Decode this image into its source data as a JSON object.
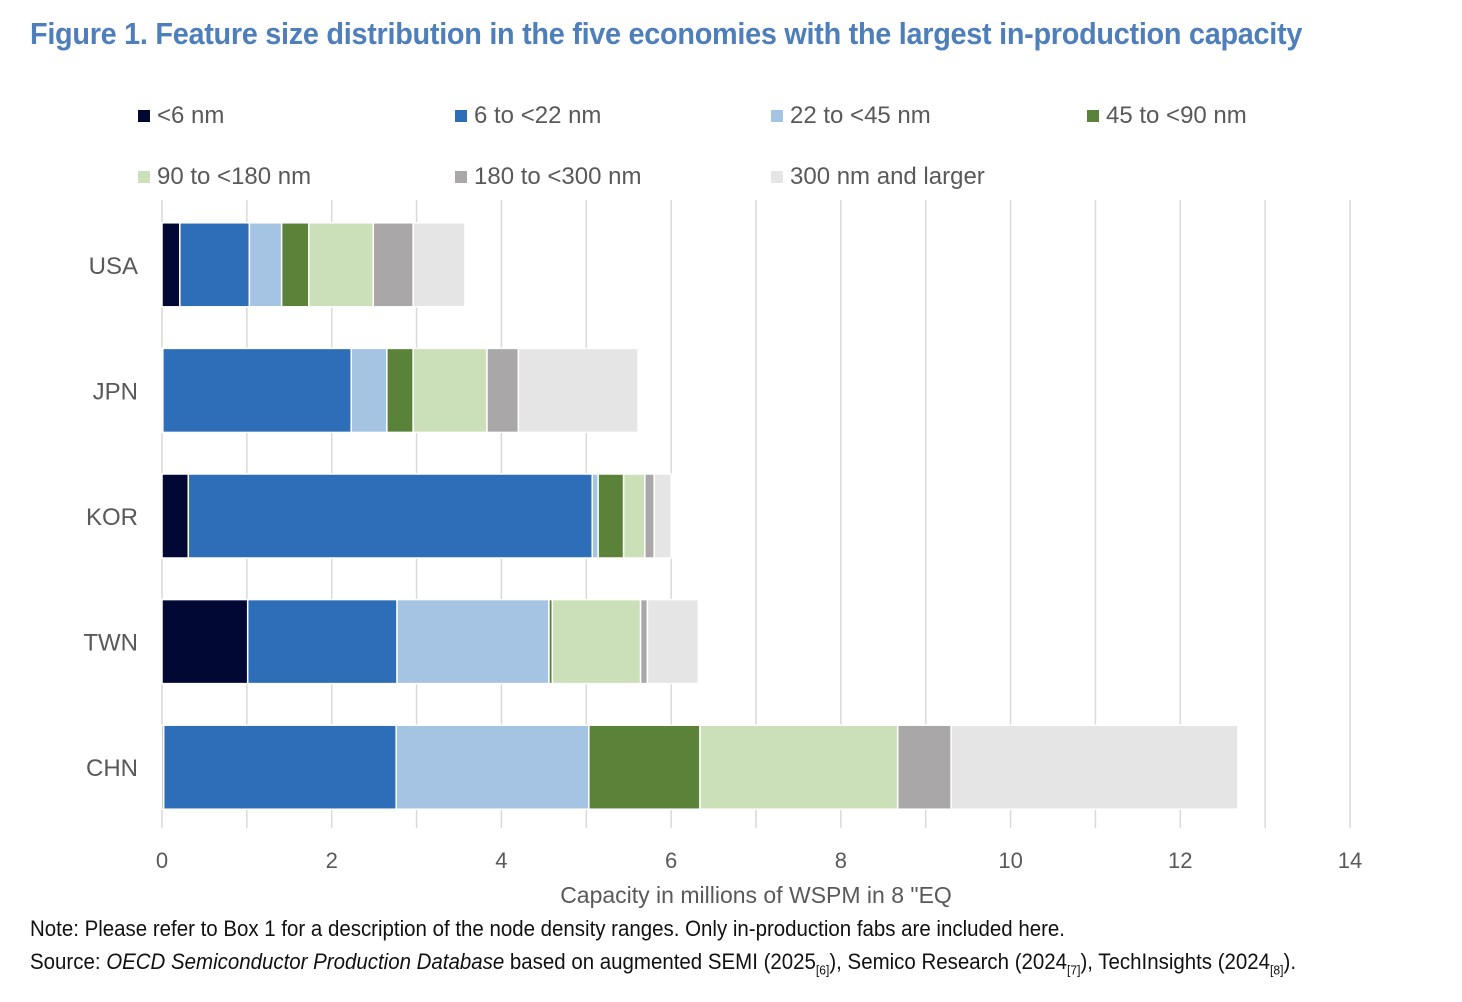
{
  "title": "Figure 1. Feature size distribution in the five economies with the largest in-production capacity",
  "chart_data": {
    "type": "bar",
    "orientation": "horizontal",
    "stacked": true,
    "title": "Figure 1. Feature size distribution in the five economies with the largest in-production capacity",
    "xlabel": "Capacity in millions of WSPM in 8 \"EQ",
    "ylabel": "",
    "xlim": [
      0,
      14
    ],
    "xticks": [
      0,
      2,
      4,
      6,
      8,
      10,
      12,
      14
    ],
    "grid": true,
    "legend_position": "top",
    "categories": [
      "USA",
      "JPN",
      "KOR",
      "TWN",
      "CHN"
    ],
    "series": [
      {
        "name": "<6 nm",
        "color": "#000833",
        "values": [
          0.21,
          0.01,
          0.31,
          1.01,
          0.02
        ]
      },
      {
        "name": "6 to <22 nm",
        "color": "#2e6db8",
        "values": [
          0.82,
          2.22,
          4.76,
          1.76,
          2.74
        ]
      },
      {
        "name": "22 to <45 nm",
        "color": "#a5c3e3",
        "values": [
          0.38,
          0.42,
          0.07,
          1.79,
          2.27
        ]
      },
      {
        "name": "45 to <90 nm",
        "color": "#5b8239",
        "values": [
          0.32,
          0.31,
          0.3,
          0.04,
          1.31
        ]
      },
      {
        "name": "90 to <180 nm",
        "color": "#cbe0b8",
        "values": [
          0.76,
          0.87,
          0.25,
          1.04,
          2.33
        ]
      },
      {
        "name": "180 to <300 nm",
        "color": "#a9a7a8",
        "values": [
          0.47,
          0.37,
          0.11,
          0.08,
          0.63
        ]
      },
      {
        "name": "300 nm and larger",
        "color": "#e5e5e5",
        "values": [
          0.61,
          1.41,
          0.2,
          0.6,
          3.38
        ]
      }
    ]
  },
  "note": "Note: Please refer to Box 1 for a description of the node density ranges. Only in-production fabs are included here.",
  "source": {
    "prefix": "Source: ",
    "italic": "OECD Semiconductor Production Database",
    "t1": " based on augmented SEMI (2025",
    "r1": "[6]",
    "t2": "), Semico Research (2024",
    "r2": "[7]",
    "t3": "), TechInsights (2024",
    "r3": "[8]",
    "t4": ")."
  }
}
